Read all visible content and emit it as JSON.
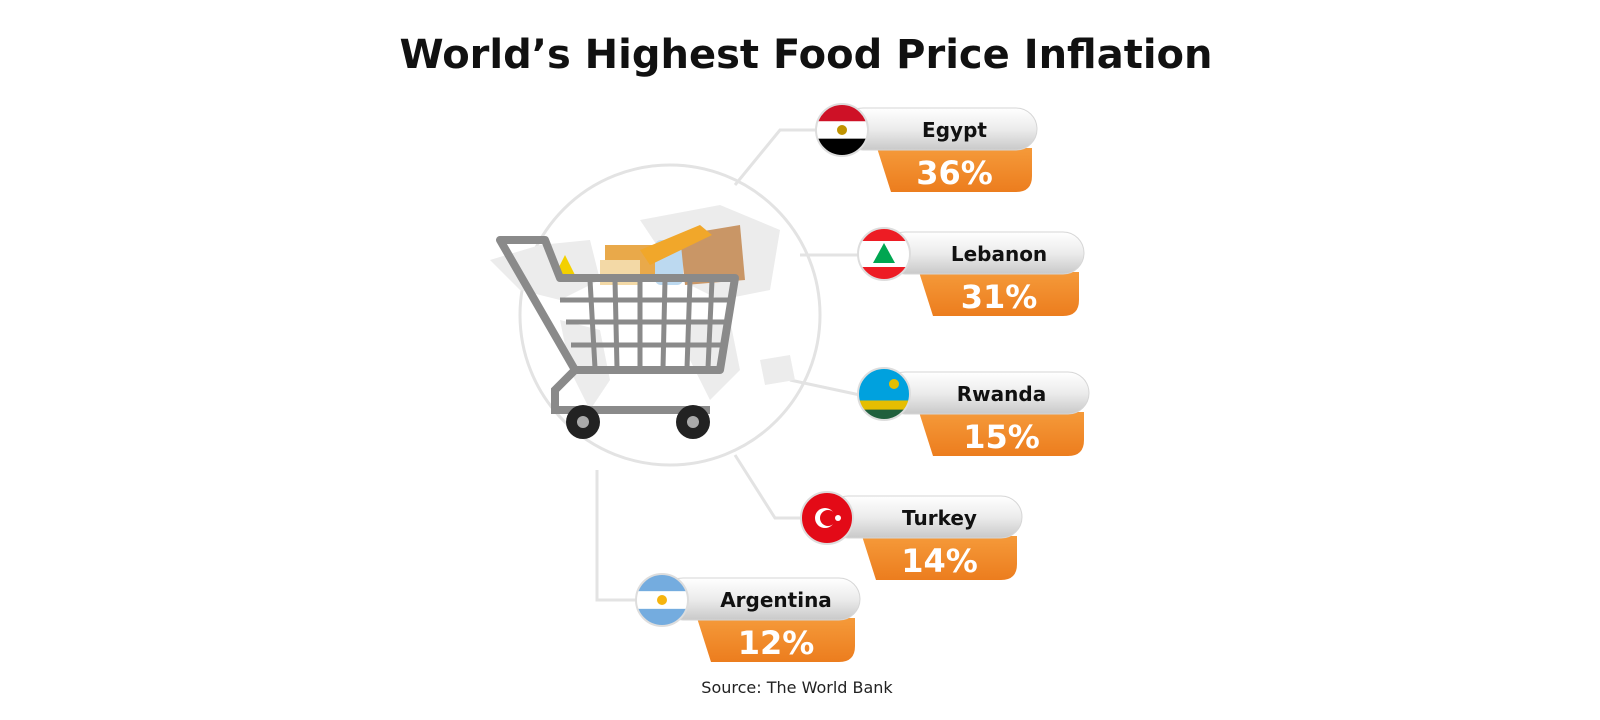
{
  "title": "World’s Highest Food Price Inflation",
  "items": [
    {
      "country": "Egypt",
      "value": "36%"
    },
    {
      "country": "Lebanon",
      "value": "31%"
    },
    {
      "country": "Rwanda",
      "value": "15%"
    },
    {
      "country": "Turkey",
      "value": "14%"
    },
    {
      "country": "Argentina",
      "value": "12%"
    }
  ],
  "source": "Source: The World Bank"
}
